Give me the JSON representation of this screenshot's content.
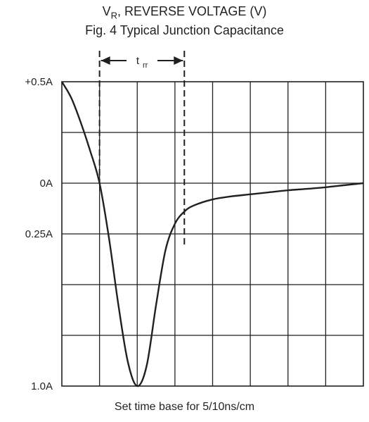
{
  "header": {
    "axis_label_main": "V",
    "axis_label_sub": "R",
    "axis_label_rest": ", REVERSE VOLTAGE (V)",
    "figure_caption": "Fig. 4  Typical Junction Capacitance"
  },
  "footer": {
    "caption": "Set time base for 5/10ns/cm"
  },
  "chart_data": {
    "type": "line",
    "title": "Fig. 4  Typical Junction Capacitance",
    "xlabel": "Set time base for 5/10ns/cm",
    "ylabel": "",
    "x_divisions": 8,
    "y_tick_labels": [
      "+0.5A",
      "0A",
      "0.25A",
      "1.0A"
    ],
    "y_tick_divisions": [
      0,
      2,
      3,
      6
    ],
    "y_divisions": 6,
    "grid": true,
    "annotation": {
      "main": "t",
      "sub": "rr",
      "start_division": 1.0,
      "end_division": 3.25
    },
    "series": [
      {
        "x": [
          0,
          0.25,
          0.5,
          0.75,
          1.0,
          1.25,
          1.5,
          1.75,
          2.0,
          2.25,
          2.5,
          2.75,
          3.0,
          3.25,
          3.5,
          4.0,
          4.5,
          5.0,
          5.5,
          6.0,
          6.5,
          7.0,
          7.5,
          8.0
        ],
        "y": [
          0.5,
          0.42,
          0.3,
          0.16,
          0.0,
          -0.27,
          -0.6,
          -0.88,
          -1.0,
          -0.9,
          -0.6,
          -0.33,
          -0.2,
          -0.14,
          -0.11,
          -0.08,
          -0.065,
          -0.055,
          -0.045,
          -0.035,
          -0.028,
          -0.02,
          -0.01,
          0.0
        ]
      }
    ]
  }
}
